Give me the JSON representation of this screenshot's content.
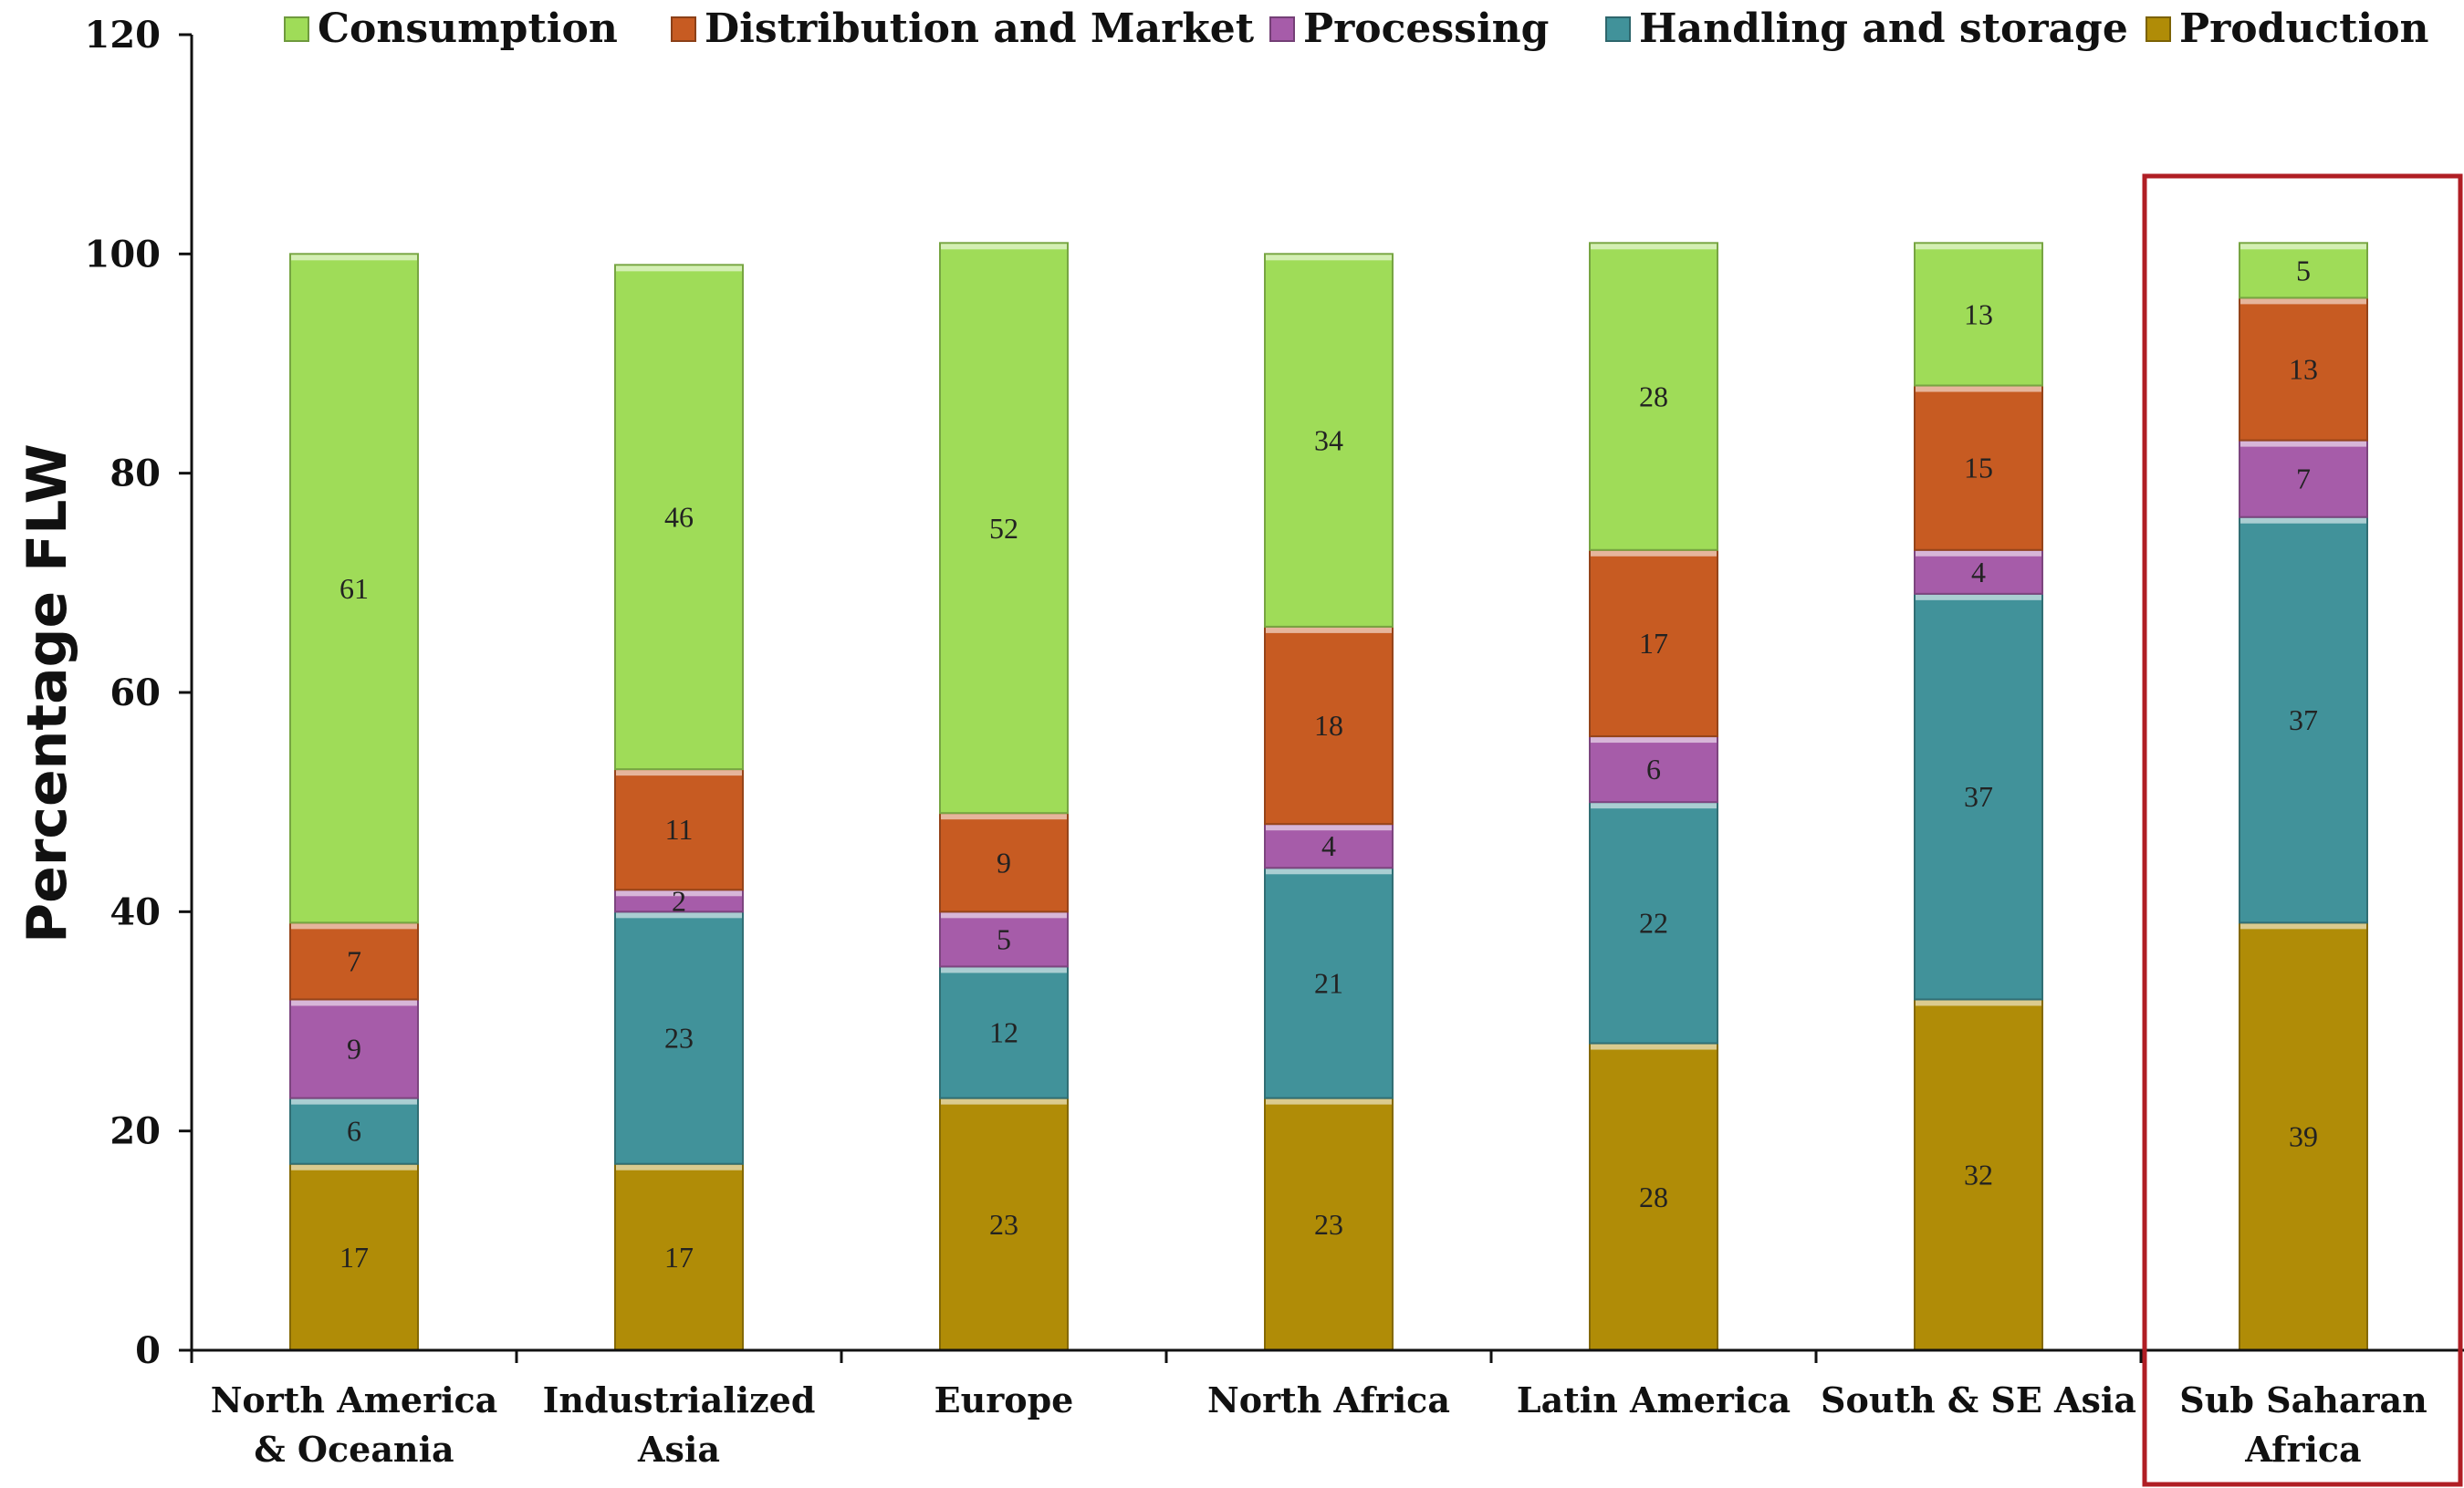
{
  "chart_data": {
    "type": "bar",
    "stacked": true,
    "title": "",
    "xlabel": "",
    "ylabel": "Percentage FLW",
    "ylim": [
      0,
      120
    ],
    "yticks": [
      0,
      20,
      40,
      60,
      80,
      100,
      120
    ],
    "grid": false,
    "legend_position": "top",
    "categories": [
      [
        "North America",
        "& Oceania"
      ],
      [
        "Industrialized",
        "Asia"
      ],
      [
        "Europe"
      ],
      [
        "North Africa"
      ],
      [
        "Latin America"
      ],
      [
        "South & SE Asia"
      ],
      [
        "Sub Saharan",
        "Africa"
      ]
    ],
    "highlighted_category_index": 6,
    "highlight_color": "#b01e24",
    "series": [
      {
        "name": "Production",
        "color": "#b08c07",
        "values": [
          17,
          17,
          23,
          23,
          28,
          32,
          39
        ]
      },
      {
        "name": "Handling and storage",
        "color": "#41929a",
        "values": [
          6,
          23,
          12,
          21,
          22,
          37,
          37
        ]
      },
      {
        "name": "Processing",
        "color": "#a65ca9",
        "values": [
          9,
          2,
          5,
          4,
          6,
          4,
          7
        ]
      },
      {
        "name": "Distribution and Market",
        "color": "#c75b22",
        "values": [
          7,
          11,
          9,
          18,
          17,
          15,
          13
        ]
      },
      {
        "name": "Consumption",
        "color": "#9fdc58",
        "values": [
          61,
          46,
          52,
          34,
          28,
          13,
          5
        ]
      }
    ],
    "legend_order": [
      "Consumption",
      "Distribution and Market",
      "Processing",
      "Handling and storage",
      "Production"
    ]
  }
}
